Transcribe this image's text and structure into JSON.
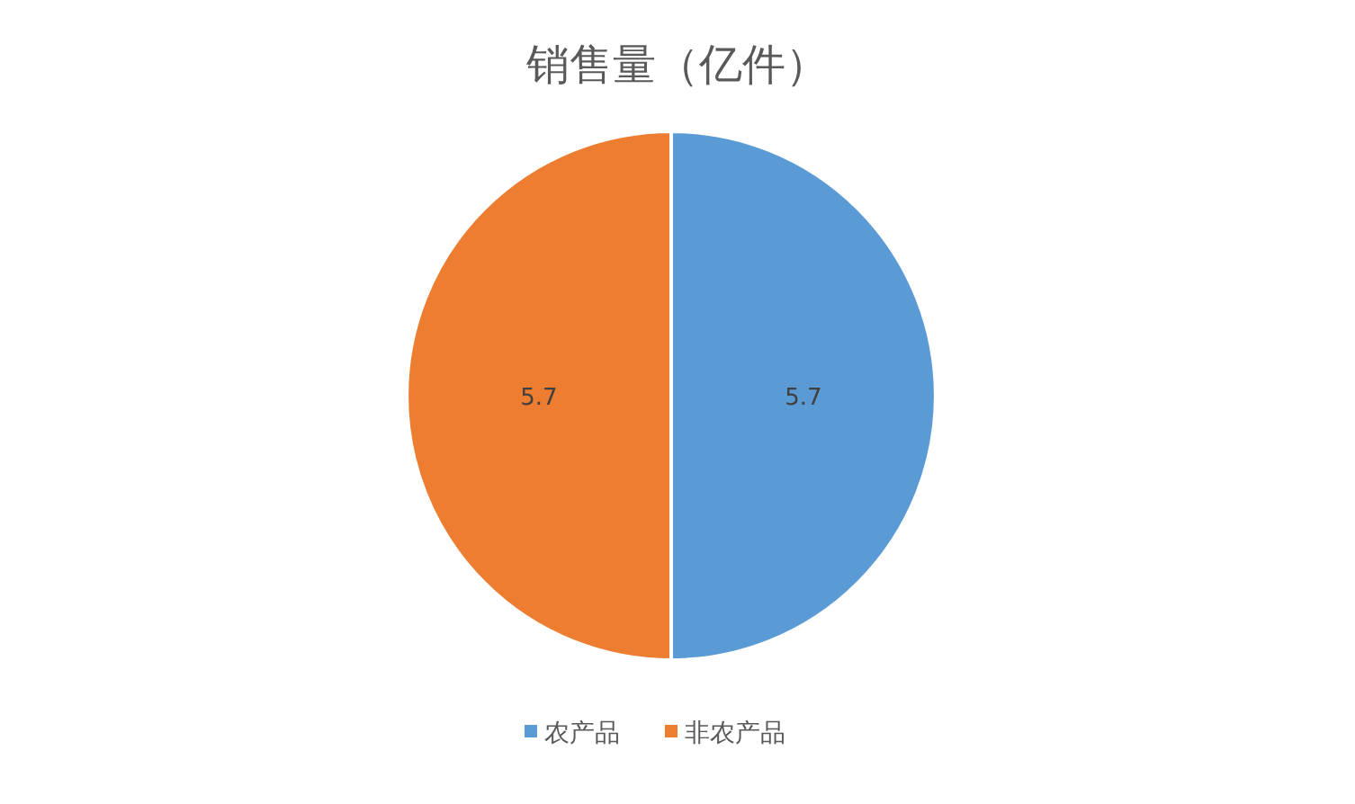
{
  "chart_data": {
    "type": "pie",
    "title": "销售量（亿件）",
    "categories": [
      "农产品",
      "非农产品"
    ],
    "values": [
      5.7,
      5.7
    ],
    "colors": [
      "#5b9bd5",
      "#ed7d31"
    ],
    "data_labels": true,
    "legend": "bottom"
  }
}
